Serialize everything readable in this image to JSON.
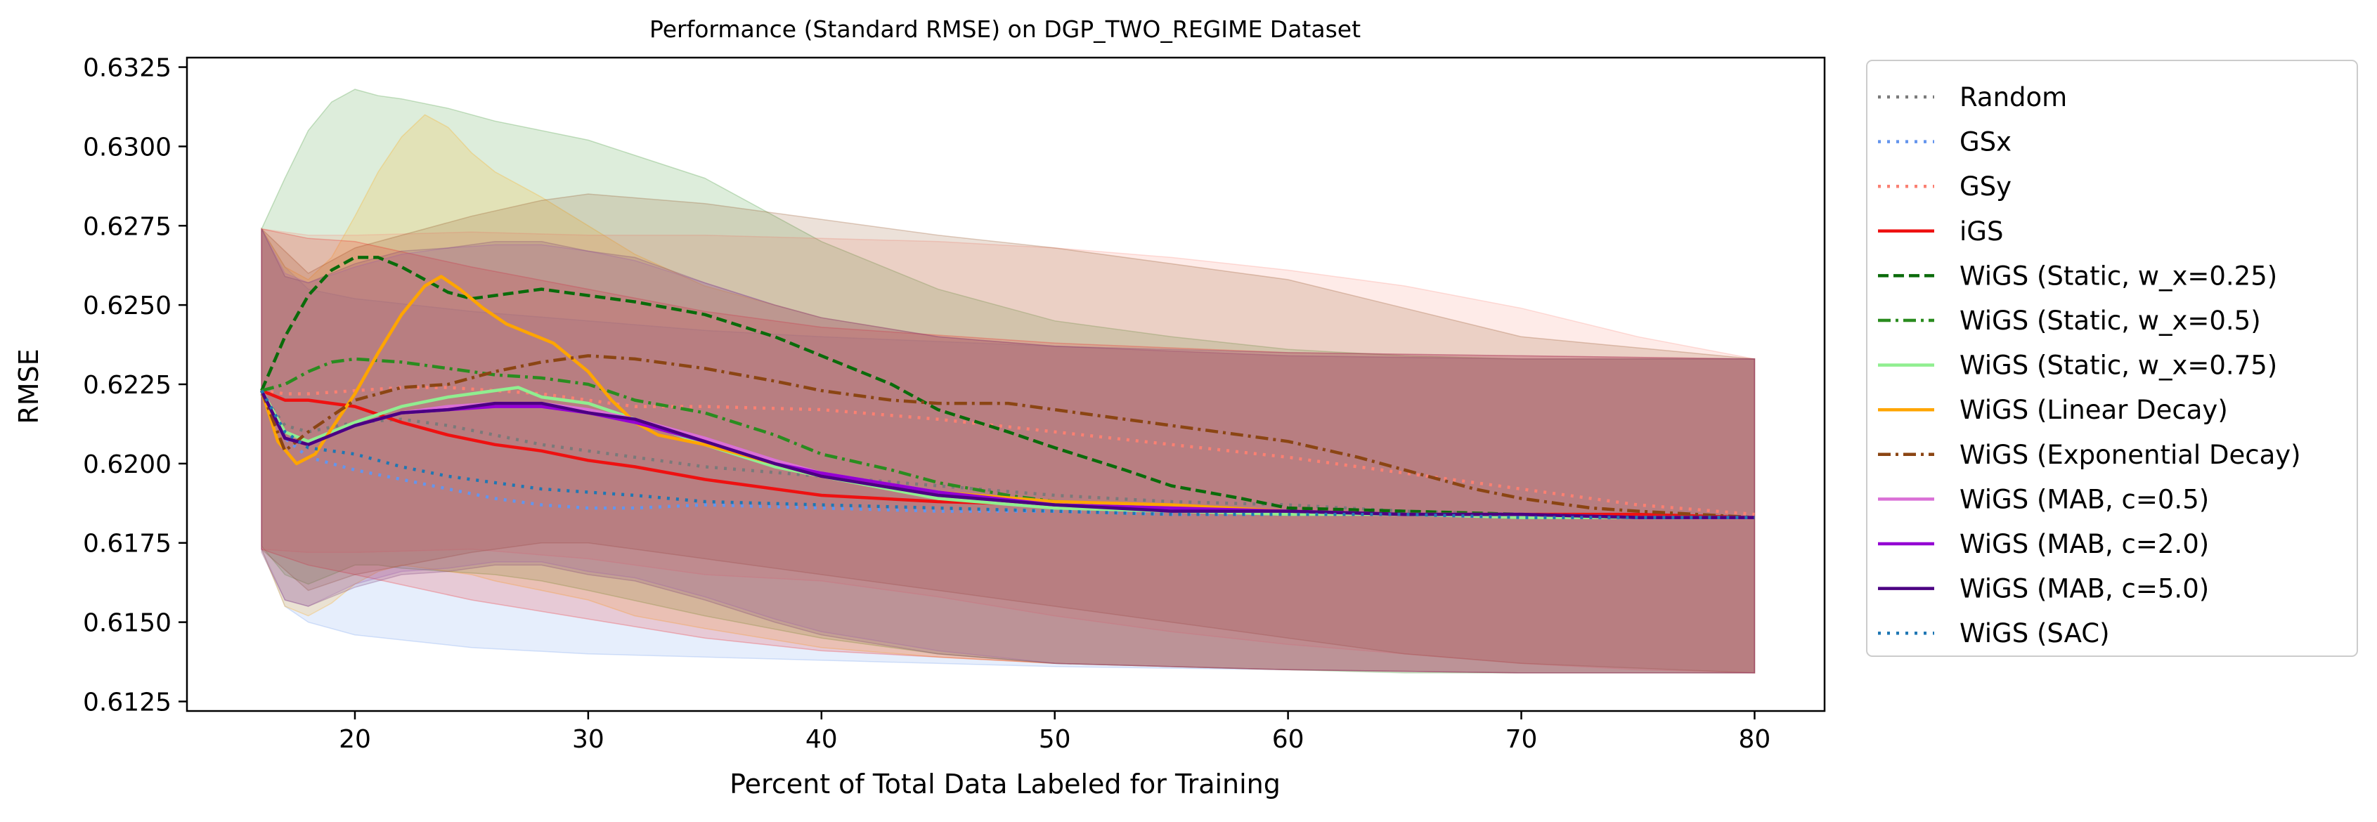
{
  "chart_data": {
    "type": "line",
    "title": "Performance (Standard RMSE) on DGP_TWO_REGIME Dataset",
    "xlabel": "Percent of Total Data Labeled for Training",
    "ylabel": "RMSE",
    "xlim": [
      12.8,
      83.0
    ],
    "ylim": [
      0.6122,
      0.6328
    ],
    "xticks": [
      20,
      30,
      40,
      50,
      60,
      70,
      80
    ],
    "xtick_labels": [
      "20",
      "30",
      "40",
      "50",
      "60",
      "70",
      "80"
    ],
    "yticks": [
      0.6125,
      0.615,
      0.6175,
      0.62,
      0.6225,
      0.625,
      0.6275,
      0.63,
      0.6325
    ],
    "ytick_labels": [
      "0.6125",
      "0.6150",
      "0.6175",
      "0.6200",
      "0.6225",
      "0.6250",
      "0.6275",
      "0.6300",
      "0.6325"
    ],
    "grid": false,
    "legend_position": "outside-right",
    "series": [
      {
        "name": "Random",
        "color": "#7a7a7a",
        "dash": "dotted",
        "x": [
          16,
          17,
          18,
          20,
          22,
          24,
          26,
          28,
          30,
          32,
          35,
          40,
          45,
          50,
          55,
          60,
          65,
          70,
          75,
          80
        ],
        "values": [
          0.6222,
          0.6212,
          0.621,
          0.6213,
          0.6214,
          0.6212,
          0.6209,
          0.6206,
          0.6204,
          0.6202,
          0.6199,
          0.6196,
          0.6193,
          0.619,
          0.6188,
          0.6187,
          0.6185,
          0.6184,
          0.6184,
          0.6183
        ]
      },
      {
        "name": "GSx",
        "color": "#6495ed",
        "dash": "dotted",
        "x": [
          16,
          17,
          18,
          20,
          22,
          24,
          26,
          28,
          30,
          32,
          35,
          40,
          45,
          50,
          55,
          60,
          65,
          70,
          75,
          80
        ],
        "values": [
          0.6223,
          0.6208,
          0.6202,
          0.6198,
          0.6195,
          0.6192,
          0.6189,
          0.6187,
          0.6186,
          0.6186,
          0.6187,
          0.6186,
          0.6185,
          0.6185,
          0.6184,
          0.6184,
          0.6184,
          0.6183,
          0.6183,
          0.6183
        ]
      },
      {
        "name": "GSy",
        "color": "#fa8072",
        "dash": "dotted",
        "x": [
          16,
          17,
          18,
          20,
          22,
          24,
          26,
          28,
          30,
          32,
          35,
          40,
          45,
          50,
          55,
          60,
          65,
          70,
          75,
          80
        ],
        "values": [
          0.6223,
          0.6222,
          0.6222,
          0.6223,
          0.6224,
          0.6224,
          0.6223,
          0.6222,
          0.622,
          0.6218,
          0.6218,
          0.6217,
          0.6214,
          0.621,
          0.6206,
          0.6202,
          0.6197,
          0.6192,
          0.6187,
          0.6184
        ]
      },
      {
        "name": "iGS",
        "color": "#ee1111",
        "dash": "solid",
        "x": [
          16,
          17,
          18,
          20,
          22,
          24,
          26,
          28,
          30,
          32,
          35,
          40,
          45,
          50,
          55,
          60,
          65,
          70,
          75,
          80
        ],
        "values": [
          0.6223,
          0.622,
          0.622,
          0.6218,
          0.6213,
          0.6209,
          0.6206,
          0.6204,
          0.6201,
          0.6199,
          0.6195,
          0.619,
          0.6188,
          0.6187,
          0.6185,
          0.6184,
          0.6184,
          0.6184,
          0.6184,
          0.6183
        ]
      },
      {
        "name": "WiGS (Static, w_x=0.25)",
        "color": "#0a6b0a",
        "dash": "dashed",
        "x": [
          16,
          17,
          18,
          19,
          20,
          21,
          22,
          23,
          24,
          25,
          26,
          28,
          30,
          32,
          35,
          38,
          40,
          43,
          45,
          48,
          50,
          53,
          55,
          58,
          60,
          65,
          70,
          75,
          80
        ],
        "values": [
          0.6223,
          0.624,
          0.6253,
          0.6261,
          0.6265,
          0.6265,
          0.6262,
          0.6258,
          0.6254,
          0.6252,
          0.6253,
          0.6255,
          0.6253,
          0.6251,
          0.6247,
          0.624,
          0.6234,
          0.6225,
          0.6217,
          0.621,
          0.6205,
          0.6198,
          0.6193,
          0.6189,
          0.6186,
          0.6185,
          0.6184,
          0.6183,
          0.6183
        ]
      },
      {
        "name": "WiGS (Static, w_x=0.5)",
        "color": "#2a8c1f",
        "dash": "dashdot",
        "x": [
          16,
          17,
          18,
          19,
          20,
          22,
          24,
          26,
          28,
          30,
          32,
          35,
          38,
          40,
          43,
          45,
          48,
          50,
          55,
          60,
          65,
          70,
          75,
          80
        ],
        "values": [
          0.6223,
          0.6225,
          0.6229,
          0.6232,
          0.6233,
          0.6232,
          0.623,
          0.6228,
          0.6227,
          0.6225,
          0.622,
          0.6216,
          0.6209,
          0.6203,
          0.6198,
          0.6194,
          0.619,
          0.6188,
          0.6186,
          0.6185,
          0.6184,
          0.6183,
          0.6183,
          0.6183
        ]
      },
      {
        "name": "WiGS (Static, w_x=0.75)",
        "color": "#90ee90",
        "dash": "solid",
        "x": [
          16,
          17,
          18,
          20,
          22,
          24,
          26,
          27,
          28,
          30,
          32,
          35,
          38,
          40,
          45,
          50,
          55,
          60,
          65,
          70,
          75,
          80
        ],
        "values": [
          0.6223,
          0.621,
          0.6207,
          0.6213,
          0.6218,
          0.6221,
          0.6223,
          0.6224,
          0.6221,
          0.6219,
          0.6214,
          0.6206,
          0.6199,
          0.6196,
          0.6189,
          0.6186,
          0.6185,
          0.6184,
          0.6184,
          0.6183,
          0.6183,
          0.6183
        ]
      },
      {
        "name": "WiGS (Linear Decay)",
        "color": "#ffa500",
        "dash": "solid",
        "x": [
          16,
          16.7,
          17.5,
          18.3,
          19,
          20,
          21,
          22,
          23,
          23.7,
          24.5,
          25.5,
          26.5,
          27.5,
          28.5,
          30,
          31,
          32,
          33,
          35,
          38,
          40,
          45,
          50,
          55,
          60,
          65,
          70,
          75,
          80
        ],
        "values": [
          0.6223,
          0.6207,
          0.62,
          0.6203,
          0.6211,
          0.6222,
          0.6235,
          0.6247,
          0.6256,
          0.6259,
          0.6255,
          0.6249,
          0.6244,
          0.6241,
          0.6238,
          0.6229,
          0.622,
          0.6213,
          0.6209,
          0.6206,
          0.62,
          0.6196,
          0.6191,
          0.6188,
          0.6187,
          0.6185,
          0.6184,
          0.6184,
          0.6183,
          0.6183
        ]
      },
      {
        "name": "WiGS (Exponential Decay)",
        "color": "#8b4513",
        "dash": "dashdot",
        "x": [
          16,
          17,
          18,
          20,
          22,
          24,
          26,
          28,
          30,
          32,
          35,
          38,
          40,
          43,
          45,
          48,
          50,
          53,
          55,
          58,
          60,
          63,
          65,
          68,
          70,
          73,
          75,
          80
        ],
        "values": [
          0.6223,
          0.6204,
          0.621,
          0.622,
          0.6224,
          0.6225,
          0.6229,
          0.6232,
          0.6234,
          0.6233,
          0.623,
          0.6226,
          0.6223,
          0.622,
          0.6219,
          0.6219,
          0.6217,
          0.6214,
          0.6212,
          0.6209,
          0.6207,
          0.6202,
          0.6198,
          0.6192,
          0.6189,
          0.6186,
          0.6185,
          0.6183
        ]
      },
      {
        "name": "WiGS (MAB, c=0.5)",
        "color": "#da70d6",
        "dash": "solid",
        "x": [
          16,
          17,
          18,
          20,
          22,
          24,
          26,
          28,
          30,
          32,
          35,
          38,
          40,
          45,
          50,
          55,
          60,
          65,
          70,
          75,
          80
        ],
        "values": [
          0.6223,
          0.6208,
          0.6206,
          0.6212,
          0.6216,
          0.6218,
          0.6219,
          0.6219,
          0.6217,
          0.6214,
          0.6208,
          0.6201,
          0.6197,
          0.6191,
          0.6187,
          0.6186,
          0.6185,
          0.6184,
          0.6184,
          0.6183,
          0.6183
        ]
      },
      {
        "name": "WiGS (MAB, c=2.0)",
        "color": "#9400d3",
        "dash": "solid",
        "x": [
          16,
          17,
          18,
          20,
          22,
          24,
          26,
          28,
          30,
          32,
          35,
          38,
          40,
          45,
          50,
          55,
          60,
          65,
          70,
          75,
          80
        ],
        "values": [
          0.6223,
          0.6208,
          0.6206,
          0.6212,
          0.6216,
          0.6217,
          0.6218,
          0.6218,
          0.6216,
          0.6213,
          0.6207,
          0.62,
          0.6197,
          0.6191,
          0.6187,
          0.6186,
          0.6185,
          0.6184,
          0.6184,
          0.6183,
          0.6183
        ]
      },
      {
        "name": "WiGS (MAB, c=5.0)",
        "color": "#4b0082",
        "dash": "solid",
        "x": [
          16,
          17,
          18,
          20,
          22,
          24,
          26,
          28,
          30,
          32,
          35,
          38,
          40,
          45,
          50,
          55,
          60,
          65,
          70,
          75,
          80
        ],
        "values": [
          0.6223,
          0.6208,
          0.6206,
          0.6212,
          0.6216,
          0.6217,
          0.6219,
          0.6219,
          0.6216,
          0.6214,
          0.6207,
          0.62,
          0.6196,
          0.619,
          0.6187,
          0.6185,
          0.6185,
          0.6184,
          0.6184,
          0.6183,
          0.6183
        ]
      },
      {
        "name": "WiGS (SAC)",
        "color": "#1f77b4",
        "dash": "dotted",
        "x": [
          16,
          17,
          18,
          20,
          22,
          24,
          26,
          28,
          30,
          32,
          35,
          40,
          45,
          50,
          55,
          60,
          65,
          70,
          75,
          80
        ],
        "values": [
          0.6223,
          0.621,
          0.6205,
          0.6203,
          0.6199,
          0.6196,
          0.6194,
          0.6192,
          0.6191,
          0.619,
          0.6188,
          0.6187,
          0.6186,
          0.6185,
          0.6184,
          0.6184,
          0.6184,
          0.6183,
          0.6183,
          0.6183
        ]
      }
    ],
    "bands": [
      {
        "color": "#6495ed",
        "x": [
          16,
          17,
          18,
          20,
          25,
          30,
          35,
          40,
          50,
          60,
          70,
          80
        ],
        "upper": [
          0.6274,
          0.6262,
          0.6255,
          0.6252,
          0.6248,
          0.6245,
          0.6242,
          0.624,
          0.6237,
          0.6234,
          0.6233,
          0.6233
        ],
        "lower": [
          0.6173,
          0.6155,
          0.615,
          0.6146,
          0.6142,
          0.614,
          0.6139,
          0.6138,
          0.6136,
          0.6135,
          0.6134,
          0.6134
        ]
      },
      {
        "color": "#2a8c1f",
        "x": [
          16,
          17,
          18,
          19,
          20,
          21,
          22,
          24,
          26,
          28,
          30,
          35,
          40,
          45,
          50,
          55,
          60,
          65,
          70,
          80
        ],
        "upper": [
          0.6274,
          0.629,
          0.6305,
          0.6314,
          0.6318,
          0.6316,
          0.6315,
          0.6312,
          0.6308,
          0.6305,
          0.6302,
          0.629,
          0.627,
          0.6255,
          0.6245,
          0.624,
          0.6236,
          0.6234,
          0.6233,
          0.6233
        ],
        "lower": [
          0.6174,
          0.6165,
          0.6162,
          0.6165,
          0.6168,
          0.6168,
          0.6167,
          0.6166,
          0.6165,
          0.6163,
          0.616,
          0.6152,
          0.6145,
          0.614,
          0.6137,
          0.6136,
          0.6135,
          0.6134,
          0.6134,
          0.6134
        ]
      },
      {
        "color": "#ffa500",
        "x": [
          16,
          17,
          18,
          19,
          20,
          21,
          22,
          23,
          24,
          25,
          26,
          28,
          30,
          32,
          35,
          40,
          45,
          50,
          60,
          70,
          80
        ],
        "upper": [
          0.6274,
          0.6262,
          0.6258,
          0.6265,
          0.6278,
          0.6292,
          0.6303,
          0.631,
          0.6306,
          0.6298,
          0.6292,
          0.6284,
          0.6275,
          0.6266,
          0.6256,
          0.6246,
          0.624,
          0.6237,
          0.6234,
          0.6233,
          0.6233
        ],
        "lower": [
          0.6173,
          0.6155,
          0.6152,
          0.6156,
          0.6162,
          0.6166,
          0.6168,
          0.6167,
          0.6166,
          0.6165,
          0.6163,
          0.616,
          0.6157,
          0.6152,
          0.6148,
          0.6142,
          0.6139,
          0.6137,
          0.6135,
          0.6134,
          0.6134
        ]
      },
      {
        "color": "#fa8072",
        "x": [
          16,
          18,
          20,
          25,
          30,
          35,
          40,
          45,
          50,
          55,
          60,
          65,
          70,
          75,
          80
        ],
        "upper": [
          0.6274,
          0.6272,
          0.6272,
          0.6273,
          0.6272,
          0.6272,
          0.6271,
          0.627,
          0.6268,
          0.6265,
          0.6261,
          0.6256,
          0.6249,
          0.624,
          0.6233
        ],
        "lower": [
          0.6173,
          0.6172,
          0.6172,
          0.6173,
          0.617,
          0.6165,
          0.6163,
          0.6158,
          0.6152,
          0.6147,
          0.6143,
          0.614,
          0.6137,
          0.6135,
          0.6134
        ]
      },
      {
        "color": "#8b4513",
        "x": [
          16,
          18,
          20,
          25,
          28,
          30,
          35,
          40,
          45,
          50,
          55,
          60,
          65,
          70,
          80
        ],
        "upper": [
          0.6274,
          0.626,
          0.6268,
          0.6278,
          0.6283,
          0.6285,
          0.6282,
          0.6277,
          0.6272,
          0.6268,
          0.6263,
          0.6258,
          0.6249,
          0.624,
          0.6233
        ],
        "lower": [
          0.6173,
          0.616,
          0.6165,
          0.6172,
          0.6175,
          0.6175,
          0.617,
          0.6165,
          0.616,
          0.6155,
          0.615,
          0.6145,
          0.614,
          0.6137,
          0.6134
        ]
      },
      {
        "color": "#ee1111",
        "x": [
          16,
          18,
          20,
          25,
          30,
          35,
          40,
          50,
          60,
          70,
          80
        ],
        "upper": [
          0.6274,
          0.6271,
          0.627,
          0.6262,
          0.6255,
          0.6248,
          0.6243,
          0.6238,
          0.6235,
          0.6234,
          0.6233
        ],
        "lower": [
          0.6173,
          0.6168,
          0.6165,
          0.6157,
          0.6151,
          0.6145,
          0.6141,
          0.6137,
          0.6135,
          0.6134,
          0.6134
        ]
      },
      {
        "color": "#9b59b6",
        "x": [
          16,
          17,
          18,
          20,
          22,
          24,
          26,
          28,
          30,
          32,
          35,
          38,
          40,
          45,
          50,
          60,
          70,
          80
        ],
        "upper": [
          0.6274,
          0.626,
          0.6257,
          0.6262,
          0.6266,
          0.6268,
          0.6269,
          0.6269,
          0.6267,
          0.6264,
          0.6257,
          0.625,
          0.6246,
          0.624,
          0.6237,
          0.6234,
          0.6233,
          0.6233
        ],
        "lower": [
          0.6173,
          0.6157,
          0.6155,
          0.6162,
          0.6166,
          0.6167,
          0.6169,
          0.6169,
          0.6166,
          0.6164,
          0.6158,
          0.6151,
          0.6147,
          0.6141,
          0.6137,
          0.6135,
          0.6134,
          0.6134
        ]
      },
      {
        "color": "#70306e",
        "x": [
          16,
          17,
          18,
          20,
          22,
          24,
          26,
          28,
          30,
          32,
          35,
          38,
          40,
          45,
          50,
          60,
          70,
          80
        ],
        "upper": [
          0.6274,
          0.6259,
          0.6257,
          0.6263,
          0.6267,
          0.6268,
          0.627,
          0.627,
          0.6267,
          0.6265,
          0.6257,
          0.625,
          0.6246,
          0.624,
          0.6237,
          0.6235,
          0.6234,
          0.6233
        ],
        "lower": [
          0.6172,
          0.6157,
          0.6155,
          0.6161,
          0.6165,
          0.6166,
          0.6168,
          0.6168,
          0.6165,
          0.6163,
          0.6157,
          0.615,
          0.6146,
          0.614,
          0.6137,
          0.6135,
          0.6134,
          0.6134
        ]
      }
    ]
  }
}
